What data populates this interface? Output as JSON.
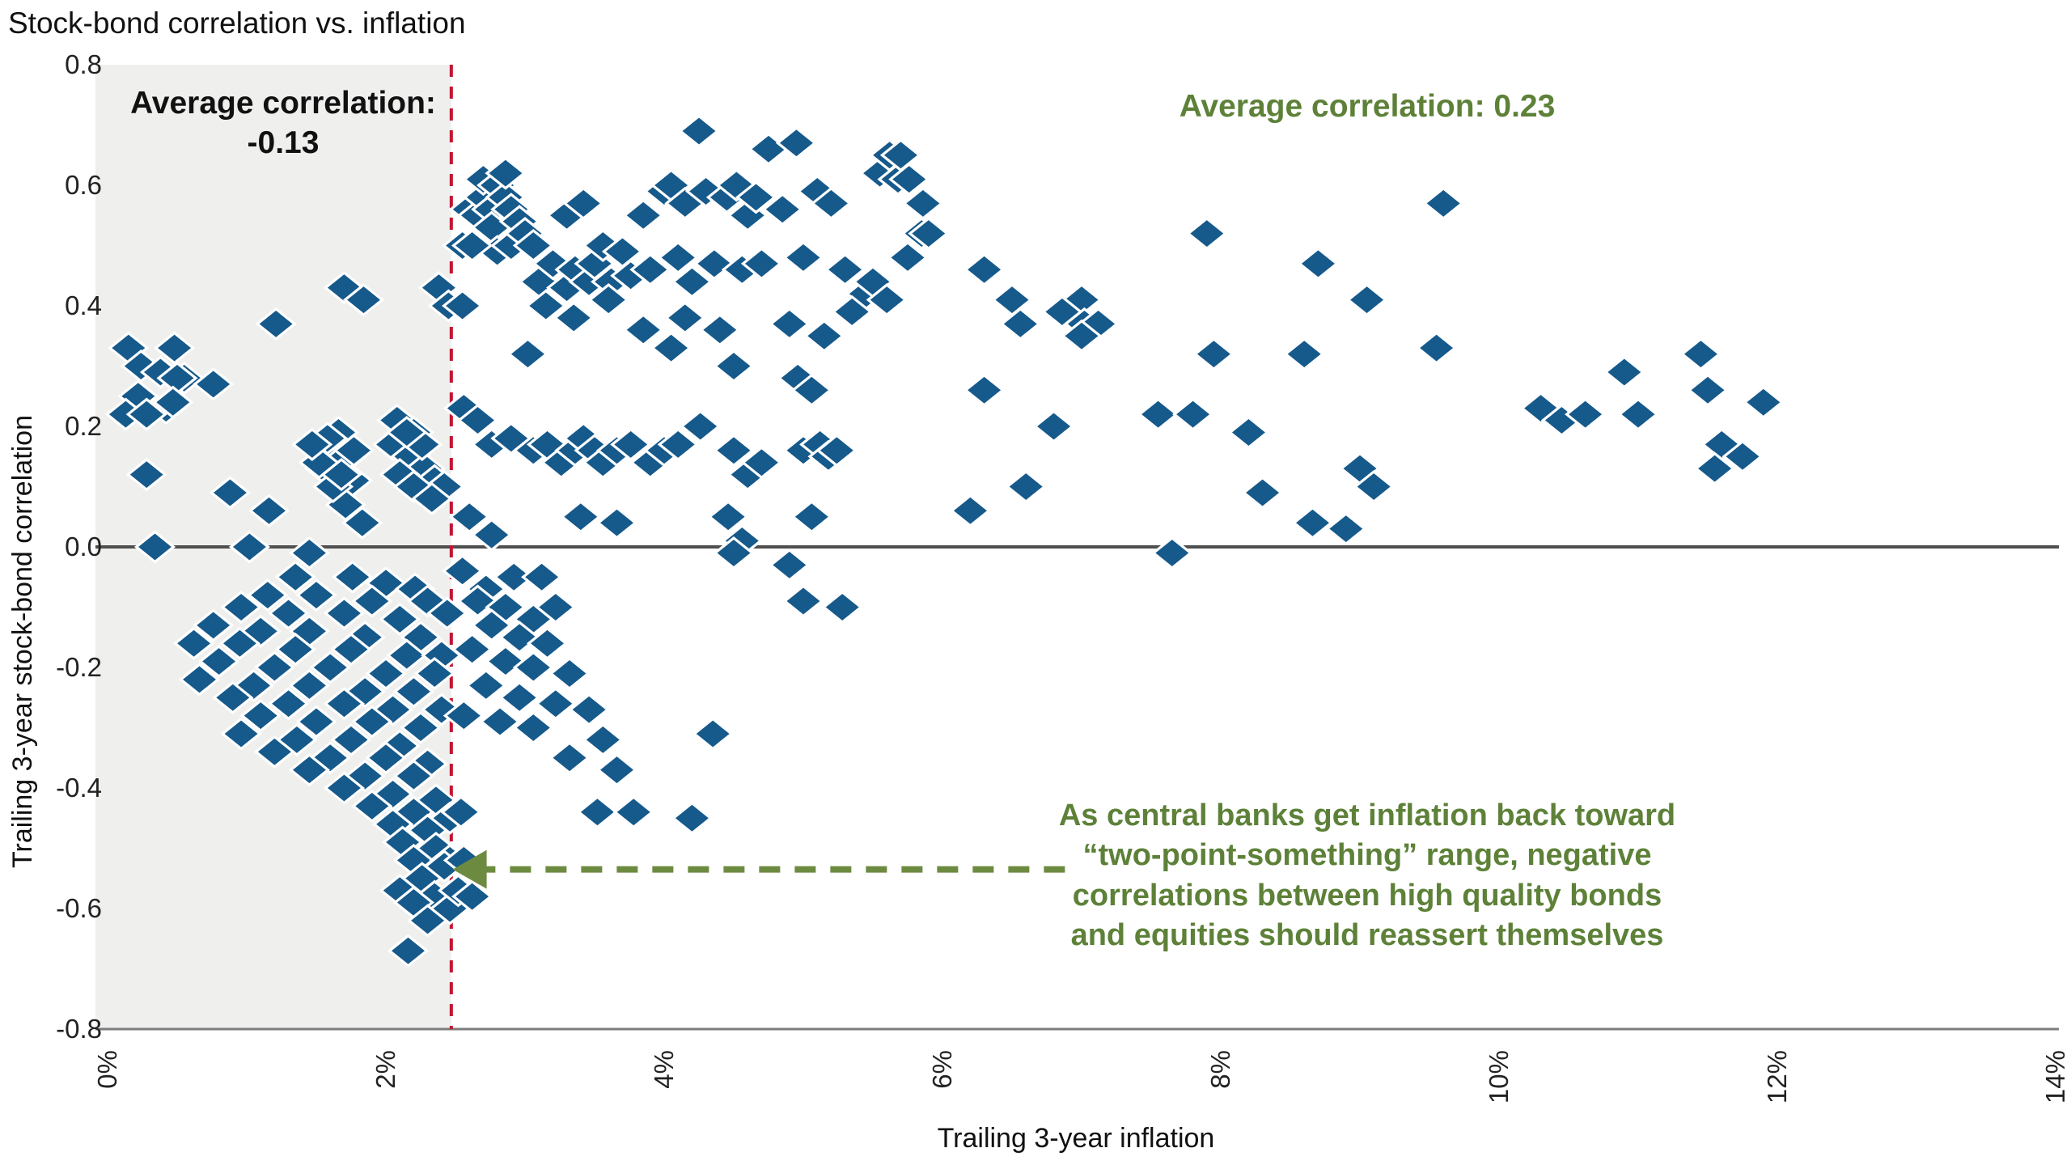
{
  "title": "Stock-bond correlation vs. inflation",
  "annotations": {
    "left_avg": "Average correlation:\n-0.13",
    "right_avg": "Average correlation: 0.23",
    "callout": "As central banks get inflation back toward\n“two-point-something” range, negative\ncorrelations between high quality bonds\nand equities should reassert themselves"
  },
  "axes": {
    "y_label": "Trailing 3-year stock-bond correlation",
    "x_label": "Trailing 3-year inflation",
    "y_ticks": [
      "0.8",
      "0.6",
      "0.4",
      "0.2",
      "0.0",
      "-0.2",
      "-0.4",
      "-0.6",
      "-0.8"
    ],
    "x_ticks": [
      "0%",
      "2%",
      "4%",
      "6%",
      "8%",
      "10%",
      "12%",
      "14%"
    ]
  },
  "colors": {
    "diamond": "#16598b",
    "green_text": "#5d8138",
    "arrow_green": "#6d8b40",
    "red_line": "#c41432",
    "shade": "#efefee",
    "zero_line": "#4f4f4f",
    "axis_line": "#7d7d7d"
  },
  "chart_data": {
    "type": "scatter",
    "title": "Stock-bond correlation vs. inflation",
    "xlabel": "Trailing 3-year inflation",
    "ylabel": "Trailing 3-year stock-bond correlation",
    "xlim": [
      0,
      14
    ],
    "ylim": [
      -0.8,
      0.8
    ],
    "x_tick_values": [
      0,
      2,
      4,
      6,
      8,
      10,
      12,
      14
    ],
    "y_tick_values": [
      0.8,
      0.6,
      0.4,
      0.2,
      0.0,
      -0.2,
      -0.4,
      -0.6,
      -0.8
    ],
    "grid": false,
    "marker": "diamond",
    "shaded_region_x": [
      0,
      2.47
    ],
    "threshold_line_x": 2.47,
    "avg_correlation_below_threshold": -0.13,
    "avg_correlation_above_threshold": 0.23,
    "arrow": {
      "tip": [
        2.48,
        -0.535
      ],
      "tail": [
        6.88,
        -0.535
      ]
    },
    "points": [
      [
        0.15,
        0.33
      ],
      [
        0.24,
        0.3
      ],
      [
        0.38,
        0.29
      ],
      [
        0.55,
        0.28
      ],
      [
        0.22,
        0.25
      ],
      [
        0.42,
        0.23
      ],
      [
        0.13,
        0.22
      ],
      [
        0.48,
        0.33
      ],
      [
        0.5,
        0.28
      ],
      [
        0.76,
        0.27
      ],
      [
        0.47,
        0.24
      ],
      [
        0.28,
        0.22
      ],
      [
        1.21,
        0.37
      ],
      [
        1.7,
        0.43
      ],
      [
        1.84,
        0.41
      ],
      [
        0.28,
        0.12
      ],
      [
        0.88,
        0.09
      ],
      [
        1.16,
        0.06
      ],
      [
        0.34,
        0.0
      ],
      [
        1.02,
        0.0
      ],
      [
        1.45,
        -0.01
      ],
      [
        1.66,
        0.19
      ],
      [
        1.59,
        0.16
      ],
      [
        1.72,
        0.15
      ],
      [
        1.56,
        0.13
      ],
      [
        1.76,
        0.11
      ],
      [
        1.71,
        0.07
      ],
      [
        1.83,
        0.04
      ],
      [
        1.62,
        0.1
      ],
      [
        1.52,
        0.14
      ],
      [
        1.58,
        0.18
      ],
      [
        1.47,
        0.17
      ],
      [
        1.68,
        0.12
      ],
      [
        1.77,
        0.16
      ],
      [
        2.08,
        0.21
      ],
      [
        2.2,
        0.19
      ],
      [
        2.05,
        0.17
      ],
      [
        2.18,
        0.15
      ],
      [
        2.28,
        0.13
      ],
      [
        2.1,
        0.12
      ],
      [
        2.35,
        0.11
      ],
      [
        2.42,
        0.1
      ],
      [
        2.2,
        0.1
      ],
      [
        2.33,
        0.08
      ],
      [
        2.26,
        0.17
      ],
      [
        2.15,
        0.19
      ],
      [
        2.38,
        0.43
      ],
      [
        2.45,
        0.4
      ],
      [
        1.35,
        -0.05
      ],
      [
        1.76,
        -0.05
      ],
      [
        2.0,
        -0.06
      ],
      [
        2.21,
        -0.07
      ],
      [
        1.15,
        -0.08
      ],
      [
        1.5,
        -0.08
      ],
      [
        1.9,
        -0.09
      ],
      [
        2.3,
        -0.09
      ],
      [
        0.96,
        -0.1
      ],
      [
        1.3,
        -0.11
      ],
      [
        1.7,
        -0.11
      ],
      [
        2.1,
        -0.12
      ],
      [
        2.44,
        -0.11
      ],
      [
        0.76,
        -0.13
      ],
      [
        1.1,
        -0.14
      ],
      [
        1.45,
        -0.14
      ],
      [
        1.85,
        -0.15
      ],
      [
        2.25,
        -0.15
      ],
      [
        0.62,
        -0.16
      ],
      [
        0.95,
        -0.16
      ],
      [
        1.35,
        -0.17
      ],
      [
        1.75,
        -0.17
      ],
      [
        2.15,
        -0.18
      ],
      [
        2.4,
        -0.18
      ],
      [
        0.8,
        -0.19
      ],
      [
        1.2,
        -0.2
      ],
      [
        1.6,
        -0.2
      ],
      [
        2.0,
        -0.21
      ],
      [
        2.35,
        -0.21
      ],
      [
        0.66,
        -0.22
      ],
      [
        1.05,
        -0.23
      ],
      [
        1.45,
        -0.23
      ],
      [
        1.85,
        -0.24
      ],
      [
        2.2,
        -0.24
      ],
      [
        0.9,
        -0.25
      ],
      [
        1.3,
        -0.26
      ],
      [
        1.7,
        -0.26
      ],
      [
        2.05,
        -0.27
      ],
      [
        2.4,
        -0.27
      ],
      [
        1.1,
        -0.28
      ],
      [
        1.5,
        -0.29
      ],
      [
        1.9,
        -0.29
      ],
      [
        2.25,
        -0.3
      ],
      [
        0.96,
        -0.31
      ],
      [
        1.36,
        -0.32
      ],
      [
        1.75,
        -0.32
      ],
      [
        2.1,
        -0.33
      ],
      [
        1.2,
        -0.34
      ],
      [
        1.6,
        -0.35
      ],
      [
        2.0,
        -0.35
      ],
      [
        2.3,
        -0.36
      ],
      [
        1.45,
        -0.37
      ],
      [
        1.85,
        -0.38
      ],
      [
        2.2,
        -0.38
      ],
      [
        1.7,
        -0.4
      ],
      [
        2.05,
        -0.41
      ],
      [
        2.36,
        -0.42
      ],
      [
        1.9,
        -0.43
      ],
      [
        2.2,
        -0.44
      ],
      [
        2.46,
        -0.45
      ],
      [
        2.05,
        -0.46
      ],
      [
        2.3,
        -0.47
      ],
      [
        2.12,
        -0.49
      ],
      [
        2.36,
        -0.5
      ],
      [
        2.2,
        -0.52
      ],
      [
        2.46,
        -0.52
      ],
      [
        2.42,
        -0.53
      ],
      [
        2.26,
        -0.55
      ],
      [
        2.1,
        -0.57
      ],
      [
        2.35,
        -0.58
      ],
      [
        2.2,
        -0.59
      ],
      [
        2.46,
        -0.6
      ],
      [
        2.3,
        -0.62
      ],
      [
        2.16,
        -0.67
      ],
      [
        2.55,
        -0.04
      ],
      [
        2.72,
        -0.07
      ],
      [
        2.92,
        -0.05
      ],
      [
        3.12,
        -0.05
      ],
      [
        2.66,
        -0.09
      ],
      [
        2.86,
        -0.1
      ],
      [
        3.06,
        -0.12
      ],
      [
        3.22,
        -0.1
      ],
      [
        2.76,
        -0.13
      ],
      [
        2.96,
        -0.15
      ],
      [
        3.16,
        -0.16
      ],
      [
        2.62,
        -0.17
      ],
      [
        2.86,
        -0.19
      ],
      [
        3.06,
        -0.2
      ],
      [
        3.32,
        -0.21
      ],
      [
        2.72,
        -0.23
      ],
      [
        2.96,
        -0.25
      ],
      [
        3.22,
        -0.26
      ],
      [
        3.46,
        -0.27
      ],
      [
        2.82,
        -0.29
      ],
      [
        3.06,
        -0.3
      ],
      [
        3.56,
        -0.32
      ],
      [
        4.35,
        -0.31
      ],
      [
        3.32,
        -0.35
      ],
      [
        3.66,
        -0.37
      ],
      [
        3.52,
        -0.44
      ],
      [
        4.2,
        -0.45
      ],
      [
        3.78,
        -0.44
      ],
      [
        2.56,
        -0.28
      ],
      [
        2.54,
        -0.44
      ],
      [
        2.52,
        -0.57
      ],
      [
        2.62,
        -0.58
      ],
      [
        2.56,
        -0.52
      ],
      [
        5.0,
        -0.09
      ],
      [
        5.28,
        -0.1
      ],
      [
        2.55,
        0.5
      ],
      [
        2.6,
        0.56
      ],
      [
        2.66,
        0.55
      ],
      [
        2.7,
        0.58
      ],
      [
        2.76,
        0.56
      ],
      [
        2.7,
        0.61
      ],
      [
        2.8,
        0.6
      ],
      [
        2.86,
        0.58
      ],
      [
        2.76,
        0.53
      ],
      [
        2.9,
        0.56
      ],
      [
        2.8,
        0.49
      ],
      [
        2.62,
        0.5
      ],
      [
        2.96,
        0.54
      ],
      [
        2.9,
        0.5
      ],
      [
        3.0,
        0.52
      ],
      [
        3.06,
        0.5
      ],
      [
        2.86,
        0.62
      ],
      [
        2.55,
        0.4
      ],
      [
        4.25,
        0.69
      ],
      [
        4.75,
        0.66
      ],
      [
        4.95,
        0.67
      ],
      [
        5.55,
        0.62
      ],
      [
        5.62,
        0.65
      ],
      [
        5.68,
        0.61
      ],
      [
        3.85,
        0.55
      ],
      [
        4.0,
        0.59
      ],
      [
        4.05,
        0.6
      ],
      [
        4.15,
        0.57
      ],
      [
        4.3,
        0.59
      ],
      [
        4.45,
        0.58
      ],
      [
        4.52,
        0.6
      ],
      [
        4.6,
        0.55
      ],
      [
        4.66,
        0.58
      ],
      [
        4.85,
        0.56
      ],
      [
        5.1,
        0.59
      ],
      [
        5.2,
        0.57
      ],
      [
        3.3,
        0.55
      ],
      [
        3.42,
        0.57
      ],
      [
        3.1,
        0.44
      ],
      [
        3.2,
        0.47
      ],
      [
        3.3,
        0.43
      ],
      [
        3.36,
        0.46
      ],
      [
        3.46,
        0.44
      ],
      [
        3.5,
        0.47
      ],
      [
        3.56,
        0.5
      ],
      [
        3.62,
        0.44
      ],
      [
        3.7,
        0.49
      ],
      [
        3.76,
        0.45
      ],
      [
        3.9,
        0.46
      ],
      [
        4.1,
        0.48
      ],
      [
        4.2,
        0.44
      ],
      [
        4.36,
        0.47
      ],
      [
        4.56,
        0.46
      ],
      [
        4.7,
        0.47
      ],
      [
        5.0,
        0.48
      ],
      [
        5.3,
        0.46
      ],
      [
        5.45,
        0.42
      ],
      [
        5.5,
        0.44
      ],
      [
        5.75,
        0.48
      ],
      [
        5.85,
        0.52
      ],
      [
        3.15,
        0.4
      ],
      [
        3.35,
        0.38
      ],
      [
        3.6,
        0.41
      ],
      [
        3.85,
        0.36
      ],
      [
        4.15,
        0.38
      ],
      [
        4.4,
        0.36
      ],
      [
        4.9,
        0.37
      ],
      [
        5.15,
        0.35
      ],
      [
        5.35,
        0.39
      ],
      [
        3.02,
        0.32
      ],
      [
        4.05,
        0.33
      ],
      [
        4.5,
        0.3
      ],
      [
        5.6,
        0.41
      ],
      [
        2.56,
        0.23
      ],
      [
        2.66,
        0.21
      ],
      [
        2.76,
        0.17
      ],
      [
        2.9,
        0.18
      ],
      [
        3.06,
        0.16
      ],
      [
        3.16,
        0.17
      ],
      [
        3.26,
        0.14
      ],
      [
        3.36,
        0.16
      ],
      [
        3.42,
        0.18
      ],
      [
        3.5,
        0.16
      ],
      [
        3.56,
        0.14
      ],
      [
        3.66,
        0.16
      ],
      [
        3.76,
        0.17
      ],
      [
        3.9,
        0.14
      ],
      [
        4.0,
        0.16
      ],
      [
        4.1,
        0.17
      ],
      [
        4.26,
        0.2
      ],
      [
        4.5,
        0.16
      ],
      [
        4.6,
        0.12
      ],
      [
        4.7,
        0.14
      ],
      [
        4.96,
        0.28
      ],
      [
        5.06,
        0.26
      ],
      [
        5.0,
        0.16
      ],
      [
        5.12,
        0.17
      ],
      [
        5.18,
        0.15
      ],
      [
        5.24,
        0.16
      ],
      [
        2.6,
        0.05
      ],
      [
        2.76,
        0.02
      ],
      [
        3.4,
        0.05
      ],
      [
        3.66,
        0.04
      ],
      [
        4.46,
        0.05
      ],
      [
        4.56,
        0.01
      ],
      [
        4.5,
        -0.01
      ],
      [
        5.06,
        0.05
      ],
      [
        4.9,
        -0.03
      ],
      [
        5.7,
        0.65
      ],
      [
        5.76,
        0.61
      ],
      [
        5.86,
        0.57
      ],
      [
        5.9,
        0.52
      ],
      [
        6.3,
        0.46
      ],
      [
        6.5,
        0.41
      ],
      [
        6.56,
        0.37
      ],
      [
        6.3,
        0.26
      ],
      [
        6.2,
        0.06
      ],
      [
        6.6,
        0.1
      ],
      [
        6.8,
        0.2
      ],
      [
        7.0,
        0.41
      ],
      [
        6.86,
        0.39
      ],
      [
        7.02,
        0.37
      ],
      [
        7.12,
        0.37
      ],
      [
        7.0,
        0.35
      ],
      [
        7.55,
        0.22
      ],
      [
        7.8,
        0.22
      ],
      [
        7.65,
        -0.01
      ],
      [
        7.9,
        0.52
      ],
      [
        7.95,
        0.32
      ],
      [
        8.2,
        0.19
      ],
      [
        8.3,
        0.09
      ],
      [
        8.66,
        0.04
      ],
      [
        8.9,
        0.03
      ],
      [
        8.7,
        0.47
      ],
      [
        8.6,
        0.32
      ],
      [
        9.0,
        0.13
      ],
      [
        9.1,
        0.1
      ],
      [
        9.05,
        0.41
      ],
      [
        9.6,
        0.57
      ],
      [
        9.55,
        0.33
      ],
      [
        10.3,
        0.23
      ],
      [
        10.45,
        0.21
      ],
      [
        10.62,
        0.22
      ],
      [
        10.9,
        0.29
      ],
      [
        11.0,
        0.22
      ],
      [
        11.45,
        0.32
      ],
      [
        11.5,
        0.26
      ],
      [
        11.6,
        0.17
      ],
      [
        11.75,
        0.15
      ],
      [
        11.55,
        0.13
      ],
      [
        11.9,
        0.24
      ]
    ]
  }
}
